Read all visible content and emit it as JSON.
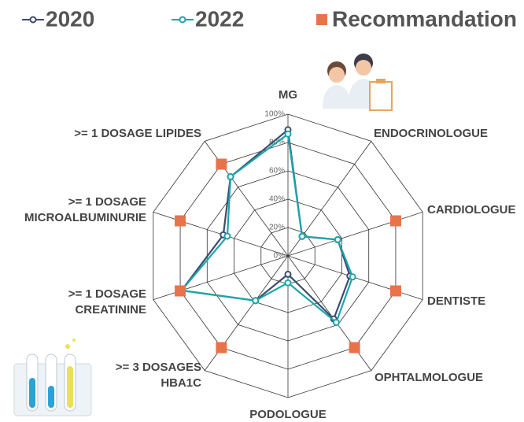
{
  "chart_data": {
    "type": "radar",
    "categories": [
      "MG",
      "ENDOCRINOLOGUE",
      "CARDIOLOGUE",
      "DENTISTE",
      "OPHTALMOLOGUE",
      "PODOLOGUE",
      ">= 3 DOSAGES\nHBA1C",
      ">= 1 DOSAGE\nCREATININE",
      ">= 1 DOSAGE\nMICROALBUMINURIE",
      ">= 1 DOSAGE LIPIDES"
    ],
    "rlim": [
      0,
      100
    ],
    "rticks": [
      {
        "value": 0,
        "label": "0%"
      },
      {
        "value": 20,
        "label": "20%"
      },
      {
        "value": 40,
        "label": "40%"
      },
      {
        "value": 60,
        "label": "60%"
      },
      {
        "value": 80,
        "label": "80%"
      },
      {
        "value": 100,
        "label": "100%"
      }
    ],
    "grid": true,
    "series": [
      {
        "name": "2020",
        "color": "#3d4b6e",
        "marker": "circle",
        "values": [
          89,
          17,
          37,
          46,
          55,
          13,
          39,
          79,
          48,
          69
        ]
      },
      {
        "name": "2022",
        "color": "#1ba5ab",
        "marker": "circle",
        "values": [
          86,
          17,
          37,
          48,
          58,
          19,
          39,
          79,
          45,
          69
        ]
      },
      {
        "name": "Recommandation",
        "color": "#e8734a",
        "marker": "square",
        "values": [
          null,
          null,
          80,
          80,
          80,
          null,
          80,
          80,
          80,
          80
        ]
      }
    ]
  }
}
